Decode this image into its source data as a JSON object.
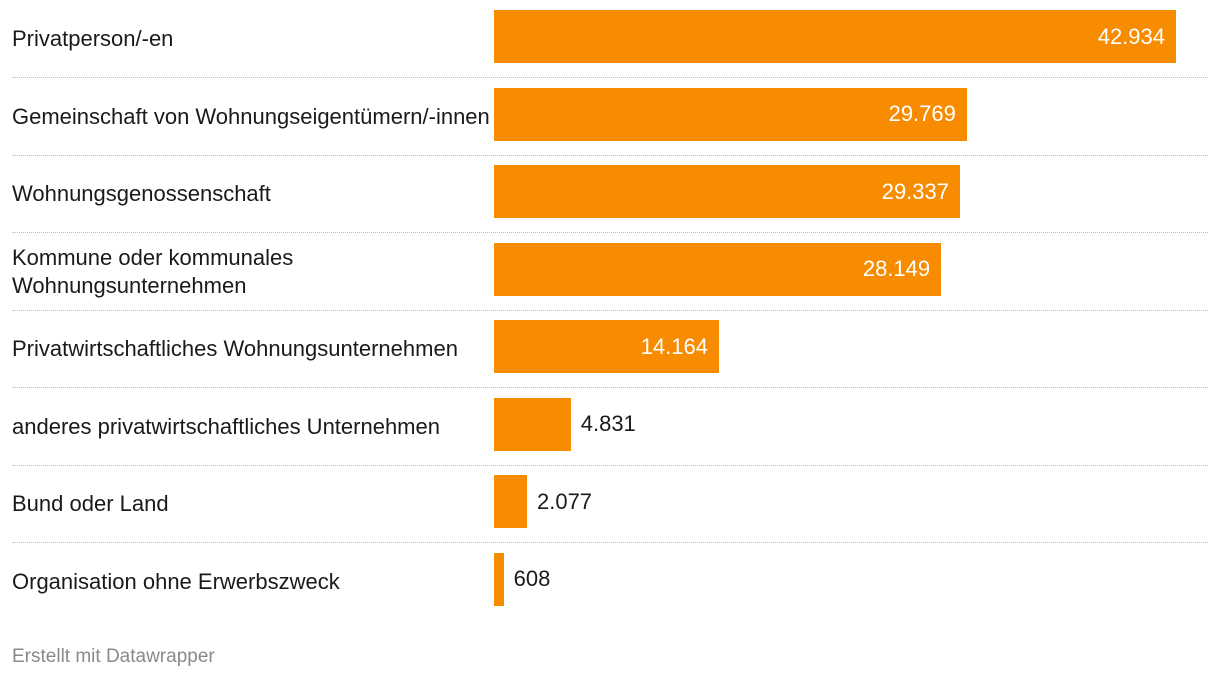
{
  "chart_data": {
    "type": "bar",
    "orientation": "horizontal",
    "categories": [
      "Privatperson/-en",
      "Gemeinschaft von Wohnungseigentümern/-innen",
      "Wohnungsgenossenschaft",
      "Kommune oder kommunales Wohnungsunternehmen",
      "Privatwirtschaftliches Wohnungsunternehmen",
      "anderes privatwirtschaftliches Unternehmen",
      "Bund oder Land",
      "Organisation ohne Erwerbszweck"
    ],
    "values": [
      42934,
      29769,
      29337,
      28149,
      14164,
      4831,
      2077,
      608
    ],
    "value_labels": [
      "42.934",
      "29.769",
      "29.337",
      "28.149",
      "14.164",
      "4.831",
      "2.077",
      "608"
    ],
    "xlim": [
      0,
      42934
    ],
    "bar_color": "#f78c00",
    "grid": false,
    "legend": "none"
  },
  "footer": {
    "credit": "Erstellt mit Datawrapper"
  }
}
